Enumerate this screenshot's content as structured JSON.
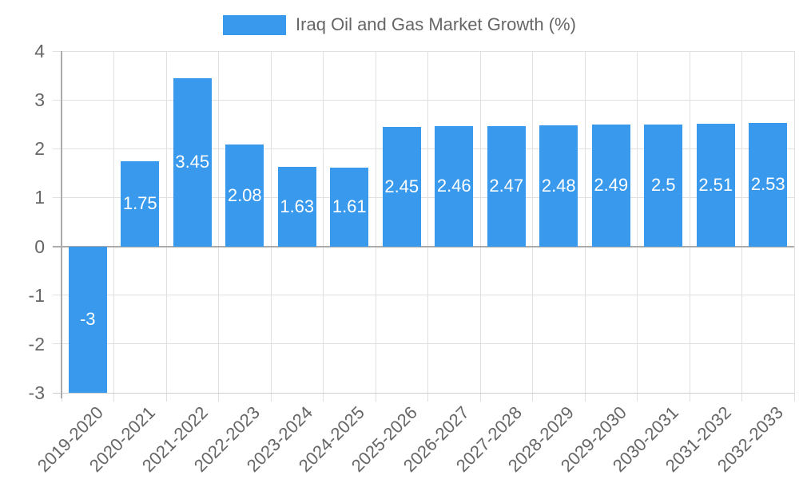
{
  "chart_data": {
    "type": "bar",
    "title": "",
    "legend": "Iraq Oil and Gas Market Growth (%)",
    "legend_position": "top",
    "categories": [
      "2019-2020",
      "2020-2021",
      "2021-2022",
      "2022-2023",
      "2023-2024",
      "2024-2025",
      "2025-2026",
      "2026-2027",
      "2027-2028",
      "2028-2029",
      "2029-2030",
      "2030-2031",
      "2031-2032",
      "2032-2033"
    ],
    "values": [
      -3,
      1.75,
      3.45,
      2.08,
      1.63,
      1.61,
      2.45,
      2.46,
      2.47,
      2.48,
      2.49,
      2.5,
      2.51,
      2.53
    ],
    "value_labels": [
      "-3",
      "1.75",
      "3.45",
      "2.08",
      "1.63",
      "1.61",
      "2.45",
      "2.46",
      "2.47",
      "2.48",
      "2.49",
      "2.5",
      "2.51",
      "2.53"
    ],
    "xlabel": "",
    "ylabel": "",
    "ylim": [
      -3,
      4
    ],
    "yticks": [
      4,
      3,
      2,
      1,
      0,
      -1,
      -2,
      -3
    ],
    "grid": true,
    "bar_color": "#3999EC"
  },
  "colors": {
    "bar": "#3999EC",
    "gridline": "#e0e0e0",
    "bottom_line": "#cfcfcf",
    "zero_line": "#ababab",
    "axis_line": "#ababab",
    "tick_text": "#666666",
    "value_label_text": "#ffffff",
    "background": "#ffffff"
  }
}
